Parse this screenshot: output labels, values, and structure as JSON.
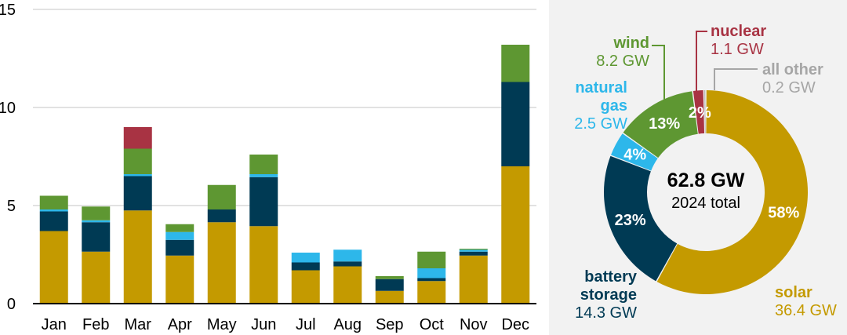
{
  "colors": {
    "solar": "#C49A00",
    "battery": "#003A54",
    "natural_gas": "#2DB7EA",
    "wind": "#5E9732",
    "nuclear": "#A83343",
    "all_other": "#A6A6A6",
    "grid": "#D9D9D9",
    "axis": "#000000"
  },
  "chart_data": [
    {
      "type": "bar",
      "stacked": true,
      "title": "",
      "xlabel": "",
      "ylabel": "",
      "ylim": [
        0,
        15
      ],
      "yticks": [
        "0",
        "5",
        "10",
        "15"
      ],
      "grid": true,
      "categories": [
        "Jan",
        "Feb",
        "Mar",
        "Apr",
        "May",
        "Jun",
        "Jul",
        "Aug",
        "Sep",
        "Oct",
        "Nov",
        "Dec"
      ],
      "series": [
        {
          "name": "solar",
          "color_key": "solar",
          "values": [
            3.7,
            2.65,
            4.75,
            2.45,
            4.15,
            3.95,
            1.7,
            1.9,
            0.65,
            1.15,
            2.45,
            7.0
          ]
        },
        {
          "name": "battery storage",
          "color_key": "battery",
          "values": [
            1.0,
            1.5,
            1.75,
            0.8,
            0.65,
            2.5,
            0.4,
            0.25,
            0.6,
            0.15,
            0.2,
            4.3
          ]
        },
        {
          "name": "natural gas",
          "color_key": "natural_gas",
          "values": [
            0.1,
            0.1,
            0.1,
            0.4,
            0.0,
            0.15,
            0.5,
            0.6,
            0.0,
            0.5,
            0.1,
            0.0
          ]
        },
        {
          "name": "wind",
          "color_key": "wind",
          "values": [
            0.7,
            0.7,
            1.3,
            0.4,
            1.25,
            1.0,
            0.0,
            0.0,
            0.15,
            0.85,
            0.05,
            1.9
          ]
        },
        {
          "name": "nuclear",
          "color_key": "nuclear",
          "values": [
            0,
            0,
            1.1,
            0,
            0,
            0,
            0,
            0,
            0,
            0,
            0,
            0
          ]
        }
      ]
    },
    {
      "type": "pie",
      "donut": true,
      "center_total": "62.8 GW",
      "center_sub": "2024 total",
      "slices": [
        {
          "key": "solar",
          "name": "solar",
          "value": 36.4,
          "value_label": "36.4 GW",
          "pct_label": "58%"
        },
        {
          "key": "battery",
          "name": "battery storage",
          "name_lines": [
            "battery",
            "storage"
          ],
          "value": 14.3,
          "value_label": "14.3 GW",
          "pct_label": "23%"
        },
        {
          "key": "natural_gas",
          "name": "natural gas",
          "name_lines": [
            "natural",
            "gas"
          ],
          "value": 2.5,
          "value_label": "2.5 GW",
          "pct_label": "4%"
        },
        {
          "key": "wind",
          "name": "wind",
          "value": 8.2,
          "value_label": "8.2 GW",
          "pct_label": "13%"
        },
        {
          "key": "nuclear",
          "name": "nuclear",
          "value": 1.1,
          "value_label": "1.1 GW",
          "pct_label": "2%"
        },
        {
          "key": "all_other",
          "name": "all other",
          "value": 0.2,
          "value_label": "0.2 GW",
          "pct_label": ""
        }
      ]
    }
  ],
  "donut_labels": {
    "wind_name": "wind",
    "wind_value": "8.2 GW",
    "nuclear_name": "nuclear",
    "nuclear_value": "1.1 GW",
    "all_other_name": "all other",
    "all_other_value": "0.2 GW",
    "natural_gas_name_1": "natural",
    "natural_gas_name_2": "gas",
    "natural_gas_value": "2.5 GW",
    "battery_name_1": "battery",
    "battery_name_2": "storage",
    "battery_value": "14.3 GW",
    "solar_name": "solar",
    "solar_value": "36.4 GW"
  }
}
